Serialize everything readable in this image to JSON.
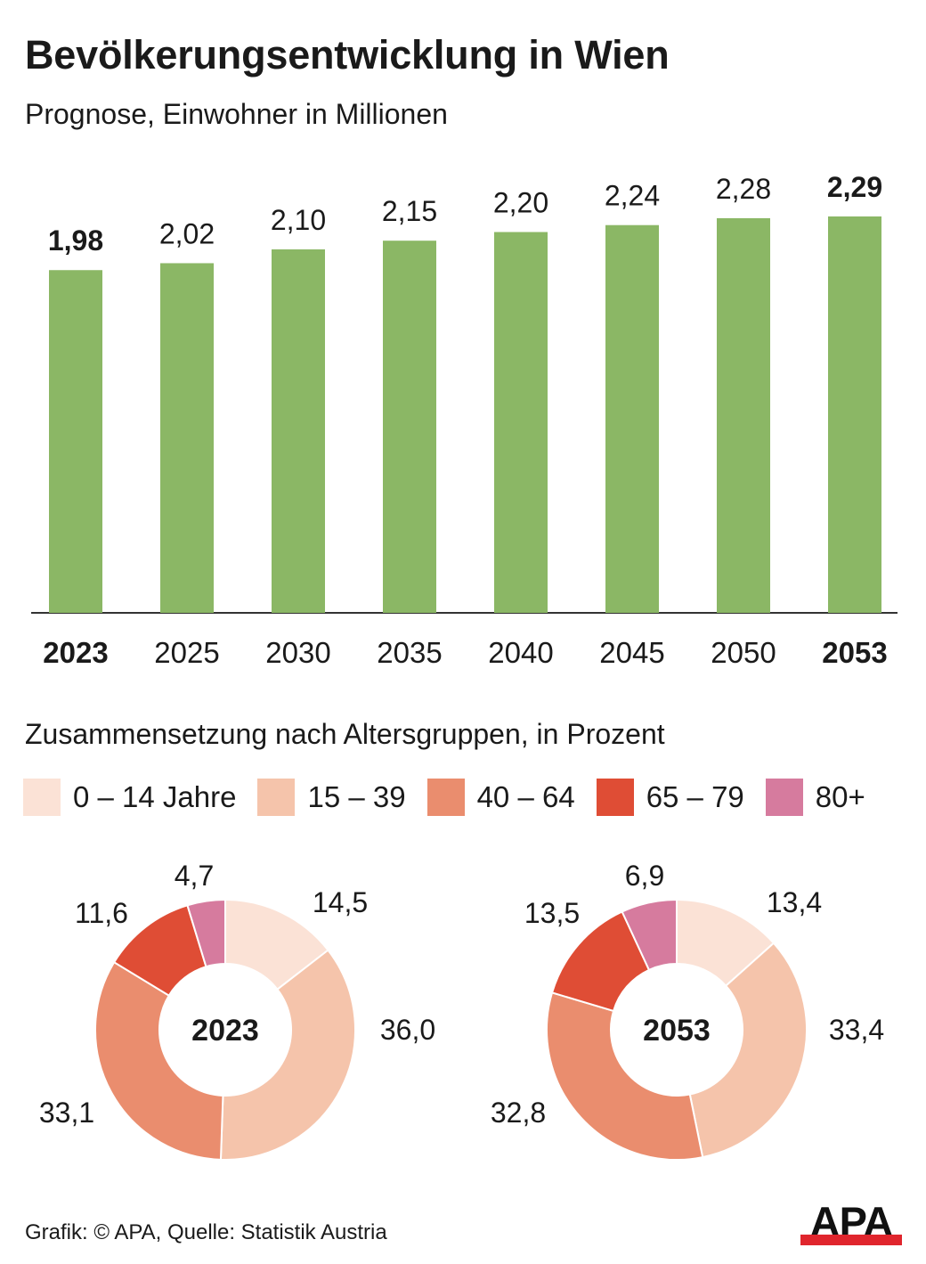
{
  "header": {
    "title": "Bevölkerungsentwicklung in Wien",
    "subtitle": "Prognose, Einwohner in Millionen"
  },
  "section2": {
    "title": "Zusammensetzung nach Altersgruppen, in Prozent"
  },
  "legend": {
    "items": [
      {
        "label": "0 – 14 Jahre",
        "color": "#fbe2d6"
      },
      {
        "label": "15 – 39",
        "color": "#f5c4ab"
      },
      {
        "label": "40 – 64",
        "color": "#ea8d6e"
      },
      {
        "label": "65 – 79",
        "color": "#df4d35"
      },
      {
        "label": "80+",
        "color": "#d67b9e"
      }
    ]
  },
  "footer": {
    "source": "Grafik: © APA, Quelle: Statistik Austria",
    "logo": "APA"
  },
  "colors": {
    "bar": "#8bb765",
    "logo_bar": "#e0252d",
    "donut_stroke": "#ffffff"
  },
  "chart_data": [
    {
      "type": "bar",
      "categories": [
        "2023",
        "2025",
        "2030",
        "2035",
        "2040",
        "2045",
        "2050",
        "2053"
      ],
      "values": [
        1.98,
        2.02,
        2.1,
        2.15,
        2.2,
        2.24,
        2.28,
        2.29
      ],
      "value_labels": [
        "1,98",
        "2,02",
        "2,10",
        "2,15",
        "2,20",
        "2,24",
        "2,28",
        "2,29"
      ],
      "highlighted": [
        "2023",
        "2053"
      ],
      "ylim": [
        0,
        2.29
      ],
      "grid": false
    },
    {
      "type": "pie",
      "donut": true,
      "center_label": "2023",
      "categories": [
        "0 – 14 Jahre",
        "15 – 39",
        "40 – 64",
        "65 – 79",
        "80+"
      ],
      "values": [
        14.5,
        36.0,
        33.1,
        11.6,
        4.7
      ],
      "value_labels": [
        "14,5",
        "36,0",
        "33,1",
        "11,6",
        "4,7"
      ]
    },
    {
      "type": "pie",
      "donut": true,
      "center_label": "2053",
      "categories": [
        "0 – 14 Jahre",
        "15 – 39",
        "40 – 64",
        "65 – 79",
        "80+"
      ],
      "values": [
        13.4,
        33.4,
        32.8,
        13.5,
        6.9
      ],
      "value_labels": [
        "13,4",
        "33,4",
        "32,8",
        "13,5",
        "6,9"
      ]
    }
  ]
}
